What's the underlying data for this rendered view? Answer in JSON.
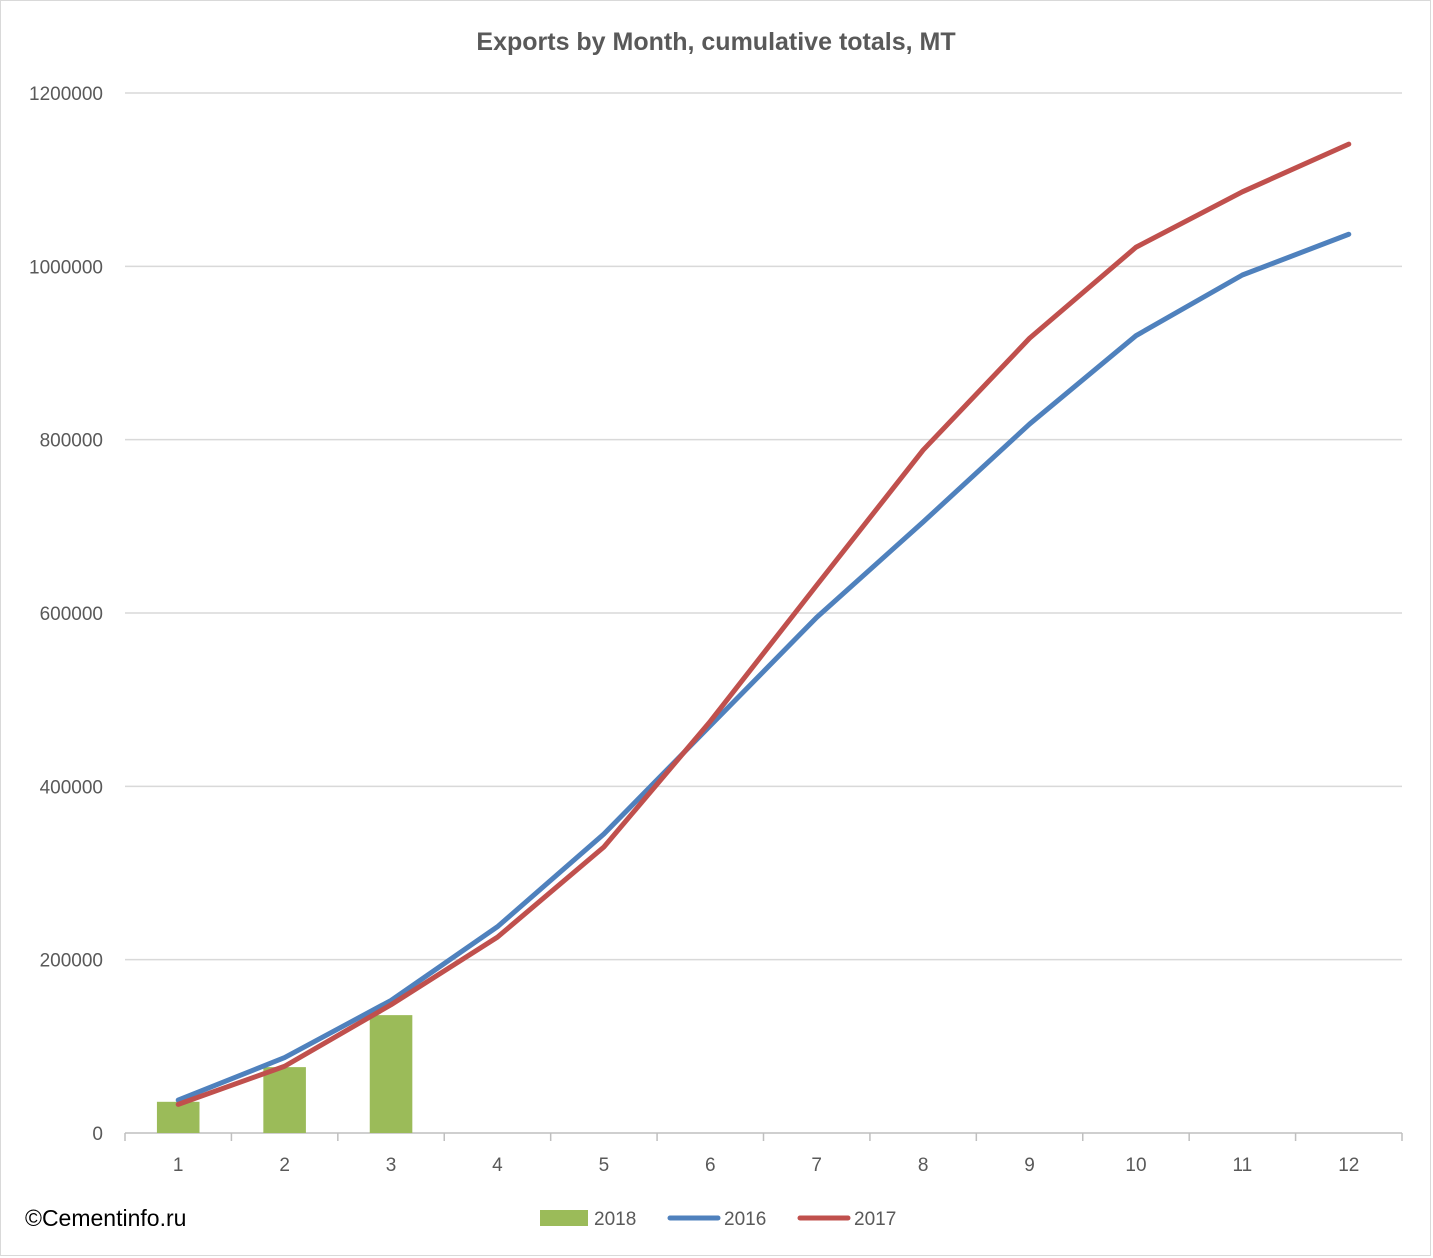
{
  "copyright": "©Cementinfo.ru",
  "chart_data": {
    "type": "bar+line",
    "title": "Exports by Month, cumulative totals, MT",
    "categories": [
      "1",
      "2",
      "3",
      "4",
      "5",
      "6",
      "7",
      "8",
      "9",
      "10",
      "11",
      "12"
    ],
    "ylim": [
      0,
      1200000
    ],
    "yticks": [
      "0",
      "200000",
      "400000",
      "600000",
      "800000",
      "1000000",
      "1200000"
    ],
    "grid": true,
    "legend_position": "bottom",
    "series": [
      {
        "name": "2018",
        "type": "bar",
        "color": "#9bbb59",
        "values": [
          36000,
          76000,
          136000,
          null,
          null,
          null,
          null,
          null,
          null,
          null,
          null,
          null
        ]
      },
      {
        "name": "2016",
        "type": "line",
        "color": "#4f81bd",
        "values": [
          38000,
          87000,
          153000,
          238000,
          345000,
          470000,
          595000,
          705000,
          818000,
          920000,
          990000,
          1037000
        ]
      },
      {
        "name": "2017",
        "type": "line",
        "color": "#c0504d",
        "values": [
          33000,
          77000,
          148000,
          226000,
          330000,
          475000,
          632000,
          788000,
          917000,
          1022000,
          1086000,
          1141000
        ]
      }
    ]
  }
}
